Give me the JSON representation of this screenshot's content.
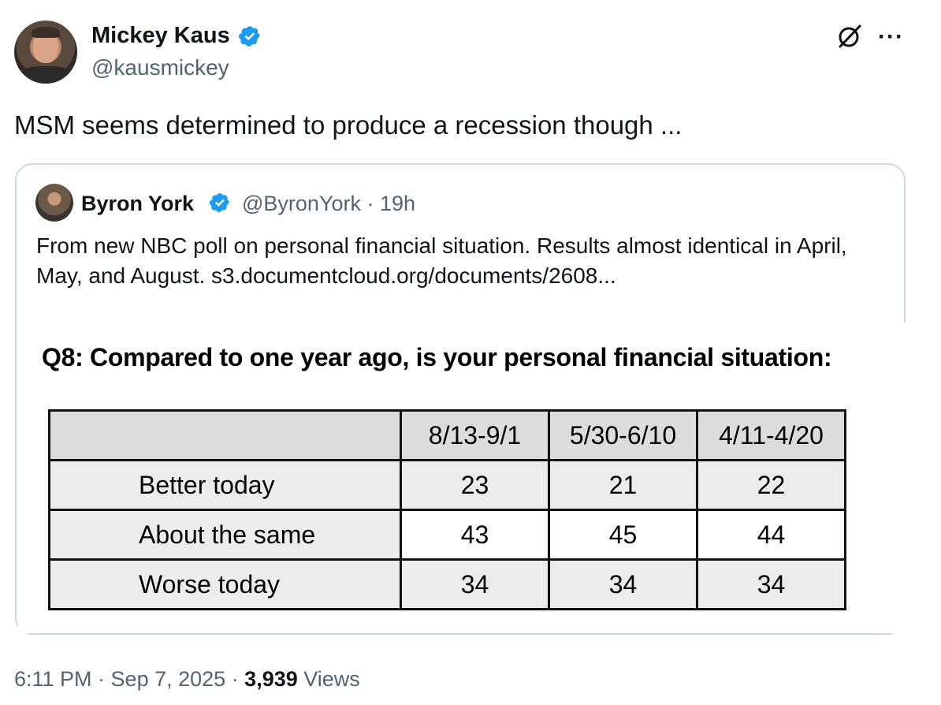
{
  "tweet": {
    "author_name": "Mickey Kaus",
    "author_handle": "@kausmickey",
    "text": "MSM seems determined to produce a recession though ...",
    "more_label": "···",
    "timestamp": "6:11 PM · Sep 7, 2025 · ",
    "views_count": "3,939",
    "views_label": " Views"
  },
  "quote": {
    "author_name": "Byron York",
    "handle_time": "@ByronYork · 19h",
    "text": "From new NBC poll on personal financial situation. Results almost identical in April, May, and August. s3.documentcloud.org/documents/2608...",
    "image": {
      "question": "Q8:  Compared to one year ago, is your personal financial situation:",
      "columns": [
        "8/13-9/1",
        "5/30-6/10",
        "4/11-4/20"
      ],
      "rows": [
        {
          "label": "Better today",
          "values": [
            "23",
            "21",
            "22"
          ]
        },
        {
          "label": "About the same",
          "values": [
            "43",
            "45",
            "44"
          ]
        },
        {
          "label": "Worse today",
          "values": [
            "34",
            "34",
            "34"
          ]
        }
      ]
    }
  },
  "icons": {
    "verified": "verified-badge-icon",
    "grok": "grok-icon",
    "more": "more-icon"
  },
  "colors": {
    "verified_blue": "#1d9bf0",
    "secondary_text": "#536471",
    "border": "#cfd9de"
  }
}
